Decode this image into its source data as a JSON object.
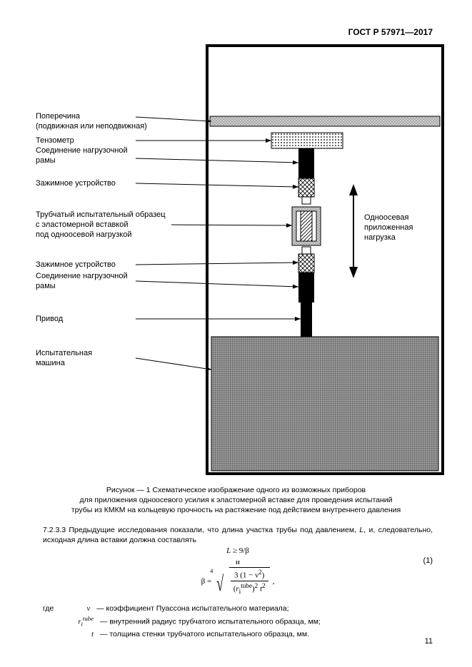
{
  "header": "ГОСТ Р 57971—2017",
  "labels": {
    "l1a": "Поперечина",
    "l1b": "(подвижная или неподвижная)",
    "l2": "Тензометр",
    "l3a": "Соединение нагрузочной",
    "l3b": "рамы",
    "l4": "Зажимное устройство",
    "l5a": "Трубчатый испытательный образец",
    "l5b": "с эластомерной вставкой",
    "l5c": "под  одноосевой нагрузкой",
    "l6": "Зажимное устройство",
    "l7a": "Соединение нагрузочной",
    "l7b": "рамы",
    "l8": "Привод",
    "l9a": "Испытательная",
    "l9b": "машина",
    "r1": "Одноосевая",
    "r2": "приложенная",
    "r3": "нагрузка"
  },
  "caption": {
    "line1": "Рисунок — 1 Схематическое изображение одного из возможных приборов",
    "line2": "для приложения одноосевого усилия к эластомерной вставке для проведения испытаний",
    "line3": "трубы из КМКМ на кольцевую прочность на растяжение под действием внутреннего давления"
  },
  "para1a": "7.2.3.3 Предыдущие исследования показали, что длина участка трубы под давлением, ",
  "para1_L": "L",
  "para1b": ", и, следовательно, исходная длина вставки должна составлять",
  "formula": {
    "line1_html": "<i>L</i> ≥ 9/β",
    "and": "и",
    "beta_lhs": "β =",
    "root_index": "4",
    "num_html": "3 (1 − ν<sup>2</sup>)",
    "den_html": "(<i>r</i><sub>i</sub><sup>tube</sup>)<sup>2</sup> <i>t</i><sup>2</sup>",
    "eqnum": "(1)"
  },
  "defs": {
    "where": "где",
    "d1sym": "ν",
    "d1": "— коэффициент Пуассона испытательного материала;",
    "d2sym_html": "<i>r</i><sub>i</sub><sup>tube</sup>",
    "d2": "— внутренний радиус трубчатого испытательного образца, мм;",
    "d3sym": "t",
    "d3": "— толщина стенки трубчатого испытательного образца, мм."
  },
  "pagenum": "11",
  "colors": {
    "frame": "#000000",
    "bg": "#ffffff",
    "gray_light": "#bfbfbf",
    "gray_med": "#9a9a9a",
    "gray_dark": "#6f6f6f",
    "black": "#000000"
  }
}
